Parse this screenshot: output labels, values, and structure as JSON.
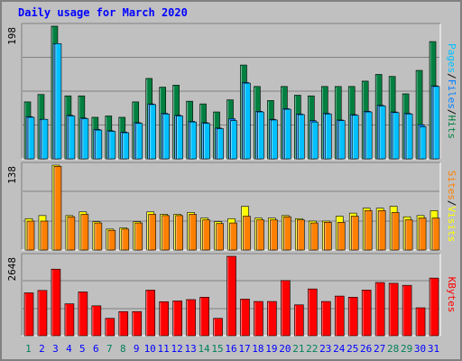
{
  "title": "Daily usage for March 2020",
  "chart_data": {
    "type": "bar",
    "title": "Daily usage for March 2020",
    "categories": [
      "1",
      "2",
      "3",
      "4",
      "5",
      "6",
      "7",
      "8",
      "9",
      "10",
      "11",
      "12",
      "13",
      "14",
      "15",
      "16",
      "17",
      "18",
      "19",
      "20",
      "21",
      "22",
      "23",
      "24",
      "25",
      "26",
      "27",
      "28",
      "29",
      "30",
      "31"
    ],
    "weekend_days": [
      "1",
      "7",
      "8",
      "14",
      "15",
      "21",
      "22",
      "28",
      "29"
    ],
    "colors": {
      "hits": "#008040",
      "files": "#0080ff",
      "pages": "#00c0ff",
      "visits": "#ffff00",
      "sites": "#ff8000",
      "kbytes": "#ff0000",
      "title": "#0000ff",
      "weekend_label": "#00805c",
      "weekday_label": "#0000ff"
    },
    "panels": [
      {
        "name": "usage",
        "ymax_label": "198",
        "ymax": 198,
        "legend": [
          "Pages",
          "/",
          "Files",
          "/",
          "Hits"
        ],
        "series": [
          {
            "name": "Hits",
            "values": [
              85,
              96,
              198,
              94,
              94,
              62,
              64,
              62,
              85,
              120,
              107,
              110,
              86,
              82,
              70,
              88,
              140,
              108,
              87,
              108,
              95,
              94,
              108,
              108,
              108,
              116,
              126,
              123,
              97,
              132,
              175
            ]
          },
          {
            "name": "Files",
            "values": [
              63,
              59,
              172,
              65,
              61,
              44,
              42,
              40,
              54,
              82,
              68,
              65,
              56,
              54,
              46,
              60,
              114,
              71,
              59,
              75,
              67,
              57,
              68,
              58,
              66,
              71,
              80,
              70,
              68,
              51,
              109
            ]
          },
          {
            "name": "Pages",
            "values": [
              62,
              59,
              172,
              64,
              60,
              43,
              41,
              39,
              53,
              81,
              67,
              64,
              55,
              53,
              45,
              57,
              113,
              70,
              58,
              74,
              66,
              55,
              67,
              57,
              65,
              70,
              79,
              69,
              67,
              48,
              108
            ]
          }
        ]
      },
      {
        "name": "sites",
        "ymax_label": "138",
        "ymax": 138,
        "legend": [
          "Sites",
          "/",
          "Visits"
        ],
        "series": [
          {
            "name": "Visits",
            "values": [
              51,
              56,
              138,
              56,
              62,
              46,
              34,
              36,
              46,
              62,
              58,
              58,
              61,
              52,
              46,
              51,
              71,
              52,
              52,
              56,
              51,
              47,
              47,
              55,
              60,
              68,
              68,
              71,
              54,
              56,
              64
            ]
          },
          {
            "name": "Sites",
            "values": [
              47,
              47,
              136,
              54,
              58,
              44,
              32,
              34,
              44,
              58,
              56,
              56,
              58,
              49,
              43,
              44,
              55,
              49,
              49,
              54,
              49,
              44,
              45,
              45,
              55,
              64,
              64,
              61,
              49,
              52,
              52
            ]
          }
        ]
      },
      {
        "name": "kbytes",
        "ymax_label": "2648",
        "ymax": 2648,
        "legend": [
          "KBytes"
        ],
        "series": [
          {
            "name": "KBytes",
            "values": [
              1430,
              1510,
              2220,
              1065,
              1460,
              998,
              580,
              805,
              805,
              1520,
              1135,
              1160,
              1205,
              1285,
              580,
              2648,
              1220,
              1142,
              1142,
              1840,
              1030,
              1560,
              1142,
              1322,
              1285,
              1522,
              1774,
              1748,
              1680,
              932,
              1922
            ]
          }
        ]
      }
    ]
  }
}
